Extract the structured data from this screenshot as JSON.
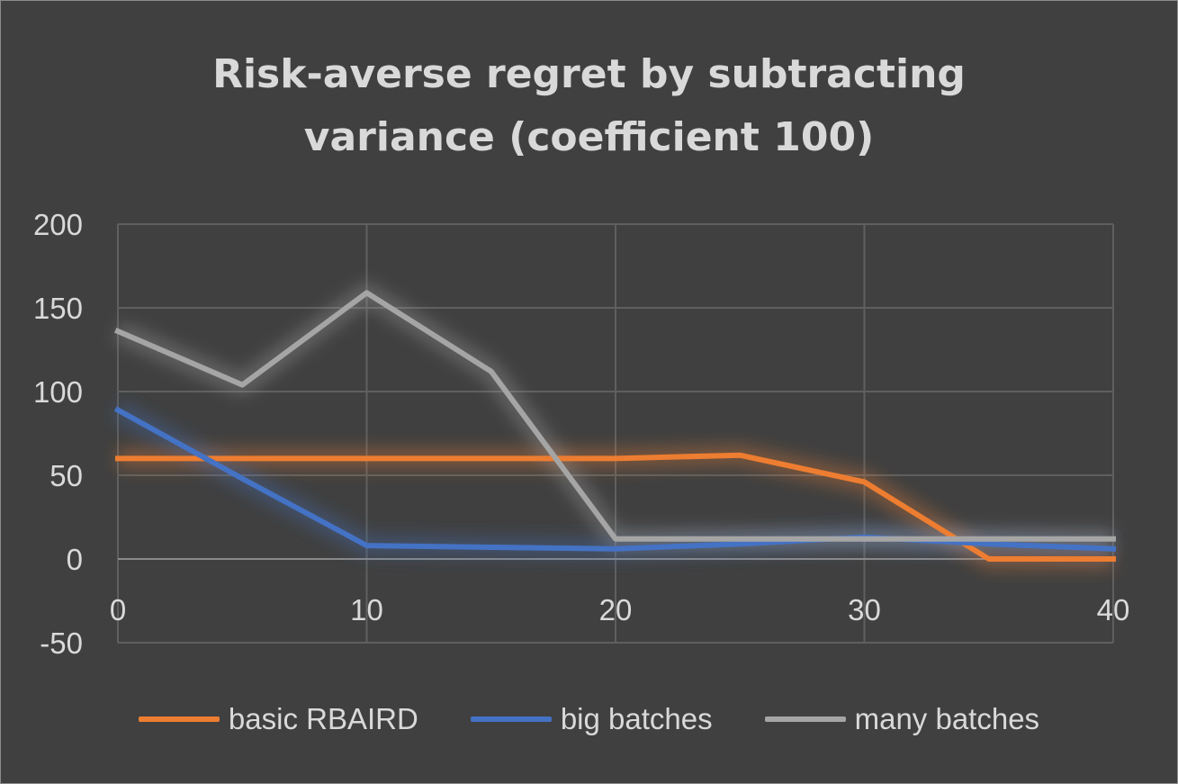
{
  "chart_data": {
    "type": "line",
    "title_lines": [
      "Risk-averse regret by subtracting",
      "variance (coefficient 100)"
    ],
    "x": [
      0,
      5,
      10,
      15,
      20,
      25,
      30,
      35,
      40
    ],
    "xlim": [
      0,
      40
    ],
    "ylim": [
      -50,
      200
    ],
    "x_ticks": [
      0,
      10,
      20,
      30,
      40
    ],
    "y_ticks": [
      -50,
      0,
      50,
      100,
      150,
      200
    ],
    "grid": true,
    "legend_position": "bottom",
    "series": [
      {
        "name": "basic RBAIRD",
        "color": "#ed7d31",
        "values": [
          60,
          60,
          60,
          60,
          60,
          62,
          46,
          0,
          0
        ]
      },
      {
        "name": "big batches",
        "color": "#4472c4",
        "values": [
          89,
          48,
          8,
          7,
          6,
          9,
          13,
          9,
          6
        ]
      },
      {
        "name": "many batches",
        "color": "#a5a5a5",
        "values": [
          136,
          104,
          159,
          112,
          12,
          12,
          12,
          12,
          12
        ]
      }
    ]
  }
}
